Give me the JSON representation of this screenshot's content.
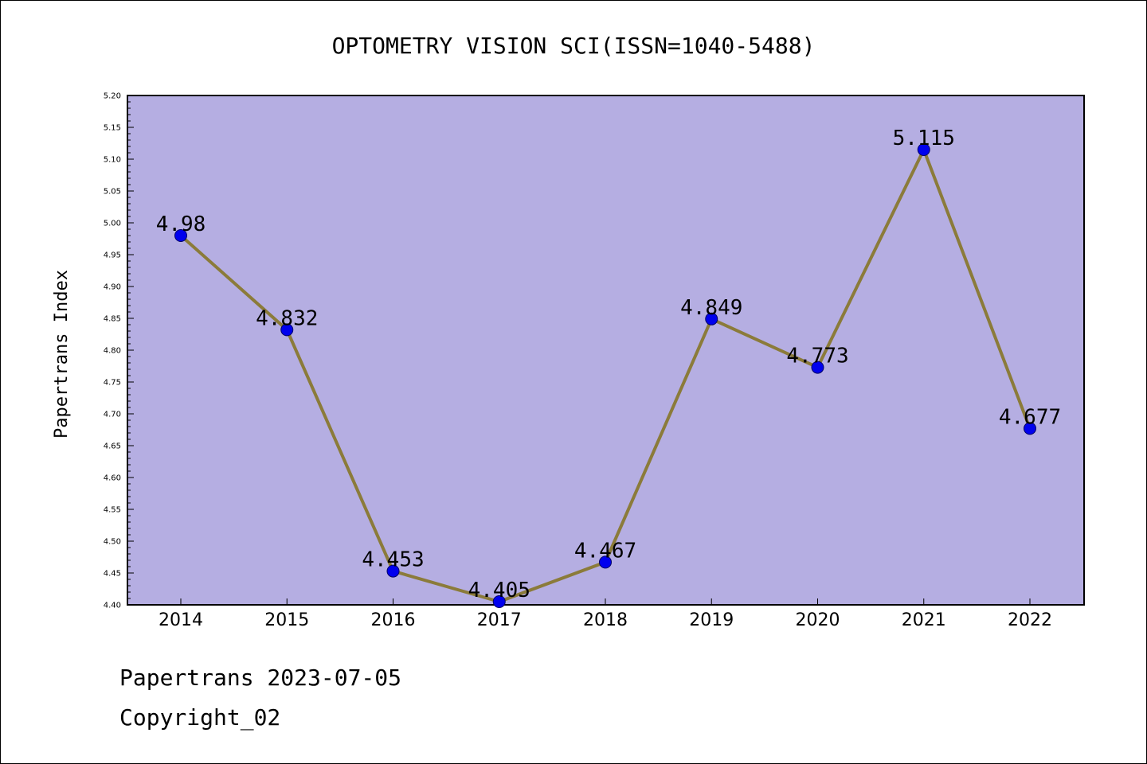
{
  "chart_data": {
    "type": "line",
    "title": "OPTOMETRY VISION SCI(ISSN=1040-5488)",
    "xlabel": "",
    "ylabel": "Papertrans Index",
    "categories": [
      "2014",
      "2015",
      "2016",
      "2017",
      "2018",
      "2019",
      "2020",
      "2021",
      "2022"
    ],
    "values": [
      4.98,
      4.832,
      4.453,
      4.405,
      4.467,
      4.849,
      4.773,
      5.115,
      4.677
    ],
    "value_labels": [
      "4.98",
      "4.832",
      "4.453",
      "4.405",
      "4.467",
      "4.849",
      "4.773",
      "5.115",
      "4.677"
    ],
    "ylim": [
      4.4,
      5.2
    ],
    "yticks": [
      "4.40",
      "4.45",
      "4.50",
      "4.55",
      "4.60",
      "4.65",
      "4.70",
      "4.75",
      "4.80",
      "4.85",
      "4.90",
      "4.95",
      "5.00",
      "5.05",
      "5.10",
      "5.15",
      "5.20"
    ],
    "grid": false,
    "legend": "none",
    "colors": {
      "plot_background": "#b5aee2",
      "line": "#8b7b3a",
      "marker": "#0000ee",
      "marker_edge": "#000066"
    }
  },
  "footer": {
    "date_line": "Papertrans 2023-07-05",
    "copyright_line": "Copyright_02"
  }
}
